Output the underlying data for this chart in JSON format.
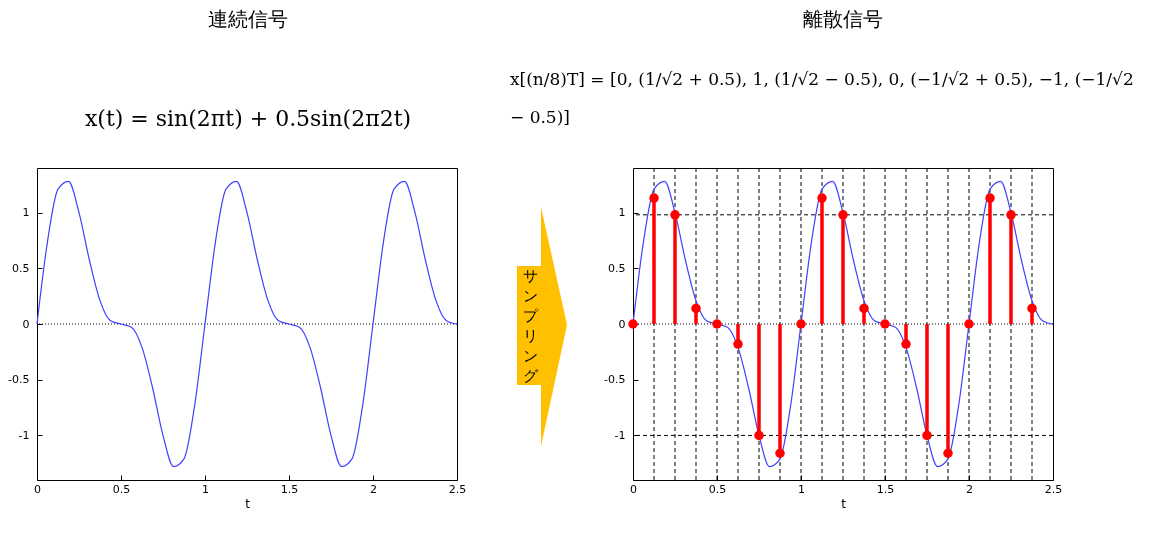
{
  "chart_data": [
    {
      "type": "line",
      "title": "連続信号",
      "subtitle": "x(t) = sin(2πt) + 0.5sin(2π2t)",
      "xlabel": "t",
      "x": [
        0,
        0.0625,
        0.125,
        0.1875,
        0.25,
        0.3125,
        0.375,
        0.4375,
        0.5,
        0.5625,
        0.625,
        0.6875,
        0.75,
        0.8125,
        0.875,
        0.9375,
        1,
        1.0625,
        1.125,
        1.1875,
        1.25,
        1.3125,
        1.375,
        1.4375,
        1.5,
        1.5625,
        1.625,
        1.6875,
        1.75,
        1.8125,
        1.875,
        1.9375,
        2,
        2.0625,
        2.125,
        2.1875,
        2.25,
        2.3125,
        2.375,
        2.4375,
        2.5
      ],
      "series": [
        {
          "color": "#4040ff",
          "values": [
            0,
            0.74,
            1.21,
            1.28,
            1,
            0.57,
            0.21,
            0.03,
            0,
            -0.03,
            -0.21,
            -0.57,
            -1,
            -1.28,
            -1.21,
            -0.74,
            0,
            0.74,
            1.21,
            1.28,
            1,
            0.57,
            0.21,
            0.03,
            0,
            -0.03,
            -0.21,
            -0.57,
            -1,
            -1.28,
            -1.21,
            -0.74,
            0,
            0.74,
            1.21,
            1.28,
            1,
            0.57,
            0.21,
            0.03,
            0
          ]
        }
      ],
      "xlim": [
        0,
        2.5
      ],
      "xticks": [
        0,
        0.5,
        1,
        1.5,
        2,
        2.5
      ],
      "ylim": [
        -1.4,
        1.4
      ],
      "yticks": [
        -1,
        -0.5,
        0,
        0.5,
        1
      ],
      "ref_lines": [
        {
          "axis": "y",
          "value": 0,
          "color": "#000000",
          "line_style": "dotted"
        }
      ]
    },
    {
      "type": "line",
      "title": "離散信号",
      "subtitle": "x[(n/8)T] = [0, (1/√2 + 0.5), 1, (1/√2 − 0.5), 0, (−1/√2 + 0.5), −1, (−1/√2 − 0.5)]",
      "xlabel": "t",
      "annotations": [
        "サンプリング"
      ],
      "series": [
        {
          "type": "line",
          "color": "#4040ff",
          "x": [
            0,
            0.0625,
            0.125,
            0.1875,
            0.25,
            0.3125,
            0.375,
            0.4375,
            0.5,
            0.5625,
            0.625,
            0.6875,
            0.75,
            0.8125,
            0.875,
            0.9375,
            1,
            1.0625,
            1.125,
            1.1875,
            1.25,
            1.3125,
            1.375,
            1.4375,
            1.5,
            1.5625,
            1.625,
            1.6875,
            1.75,
            1.8125,
            1.875,
            1.9375,
            2,
            2.0625,
            2.125,
            2.1875,
            2.25,
            2.3125,
            2.375,
            2.4375,
            2.5
          ],
          "values": [
            0,
            0.74,
            1.21,
            1.28,
            1,
            0.57,
            0.21,
            0.03,
            0,
            -0.03,
            -0.21,
            -0.57,
            -1,
            -1.28,
            -1.21,
            -0.74,
            0,
            0.74,
            1.21,
            1.28,
            1,
            0.57,
            0.21,
            0.03,
            0,
            -0.03,
            -0.21,
            -0.57,
            -1,
            -1.28,
            -1.21,
            -0.74,
            0,
            0.74,
            1.21,
            1.28,
            1,
            0.57,
            0.21,
            0.03,
            0
          ]
        },
        {
          "type": "lollipop",
          "color": "#ff0000",
          "x": [
            0,
            0.125,
            0.25,
            0.375,
            0.5,
            0.625,
            0.75,
            0.875,
            1,
            1.125,
            1.25,
            1.375,
            1.5,
            1.625,
            1.75,
            1.875,
            2,
            2.125,
            2.25,
            2.375
          ],
          "values": [
            0,
            1.13,
            0.98,
            0.14,
            0,
            -0.18,
            -1,
            -1.16,
            0,
            1.13,
            0.98,
            0.14,
            0,
            -0.18,
            -1,
            -1.16,
            0,
            1.13,
            0.98,
            0.14
          ]
        }
      ],
      "xlim": [
        0,
        2.5
      ],
      "xticks": [
        0,
        0.5,
        1,
        1.5,
        2,
        2.5
      ],
      "ylim": [
        -1.4,
        1.4
      ],
      "yticks": [
        -1,
        -0.5,
        0,
        0.5,
        1
      ],
      "ref_lines": [
        {
          "axis": "y",
          "value": 0,
          "color": "#000000",
          "line_style": "dotted"
        },
        {
          "axis": "y",
          "value": 0.98,
          "color": "#000000",
          "line_style": "dashed"
        },
        {
          "axis": "y",
          "value": -1,
          "color": "#000000",
          "line_style": "dashed"
        },
        {
          "axis": "x",
          "value": 0.125,
          "color": "#000000",
          "line_style": "dashed"
        },
        {
          "axis": "x",
          "value": 0.25,
          "color": "#000000",
          "line_style": "dashed"
        },
        {
          "axis": "x",
          "value": 0.375,
          "color": "#000000",
          "line_style": "dashed"
        },
        {
          "axis": "x",
          "value": 0.5,
          "color": "#000000",
          "line_style": "dashed"
        },
        {
          "axis": "x",
          "value": 0.625,
          "color": "#000000",
          "line_style": "dashed"
        },
        {
          "axis": "x",
          "value": 0.75,
          "color": "#000000",
          "line_style": "dashed"
        },
        {
          "axis": "x",
          "value": 0.875,
          "color": "#000000",
          "line_style": "dashed"
        },
        {
          "axis": "x",
          "value": 1,
          "color": "#000000",
          "line_style": "dashed"
        },
        {
          "axis": "x",
          "value": 1.125,
          "color": "#000000",
          "line_style": "dashed"
        },
        {
          "axis": "x",
          "value": 1.25,
          "color": "#000000",
          "line_style": "dashed"
        },
        {
          "axis": "x",
          "value": 1.375,
          "color": "#000000",
          "line_style": "dashed"
        },
        {
          "axis": "x",
          "value": 1.5,
          "color": "#000000",
          "line_style": "dashed"
        },
        {
          "axis": "x",
          "value": 1.625,
          "color": "#000000",
          "line_style": "dashed"
        },
        {
          "axis": "x",
          "value": 1.75,
          "color": "#000000",
          "line_style": "dashed"
        },
        {
          "axis": "x",
          "value": 1.875,
          "color": "#000000",
          "line_style": "dashed"
        },
        {
          "axis": "x",
          "value": 2,
          "color": "#000000",
          "line_style": "dashed"
        },
        {
          "axis": "x",
          "value": 2.125,
          "color": "#000000",
          "line_style": "dashed"
        },
        {
          "axis": "x",
          "value": 2.25,
          "color": "#000000",
          "line_style": "dashed"
        },
        {
          "axis": "x",
          "value": 2.375,
          "color": "#000000",
          "line_style": "dashed"
        }
      ]
    }
  ]
}
